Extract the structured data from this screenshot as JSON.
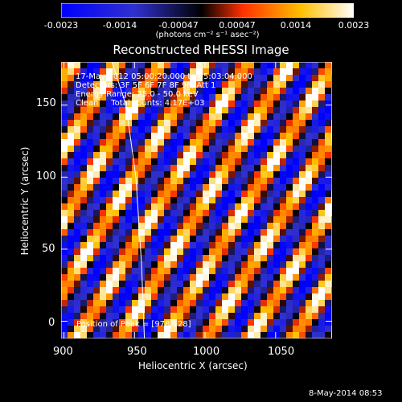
{
  "colorbar": {
    "ticks": [
      "-0.0023",
      "-0.0014",
      "-0.00047",
      "0.00047",
      "0.0014",
      "0.0023"
    ],
    "unit_label": "(photons cm⁻² s⁻¹ asec⁻²)",
    "colors": [
      "#0000ff",
      "#3030d0",
      "#000000",
      "#ff4000",
      "#ffc000",
      "#ffffff"
    ]
  },
  "chart_data": {
    "type": "heatmap",
    "title": "Reconstructed RHESSI Image",
    "xlabel": "Heliocentric X (arcsec)",
    "ylabel": "Heliocentric Y (arcsec)",
    "xlim": [
      898,
      1090
    ],
    "ylim": [
      -12,
      180
    ],
    "x_ticks": [
      "900",
      "950",
      "1000",
      "1050"
    ],
    "y_ticks": [
      "0",
      "50",
      "100",
      "150"
    ],
    "zlim": [
      -0.0023,
      0.0023
    ],
    "pattern": "diagonal stripe grating",
    "info_lines": [
      "17-May-2012 05:00:20.000 to 05:03:04.000",
      "Detectors: 3F 5F 6F 7F 8F 9F, Att 1",
      "Energy Range: 25.0 - 50.0 keV",
      "Clean     Total counts: 4.17E+03"
    ],
    "peak_label": "Position of Peak = [978,128]",
    "limb_curve": [
      [
        957,
        -12
      ],
      [
        955,
        40
      ],
      [
        951,
        100
      ],
      [
        944,
        150
      ],
      [
        934,
        180
      ]
    ]
  },
  "footer": {
    "timestamp": "8-May-2014 08:53"
  }
}
